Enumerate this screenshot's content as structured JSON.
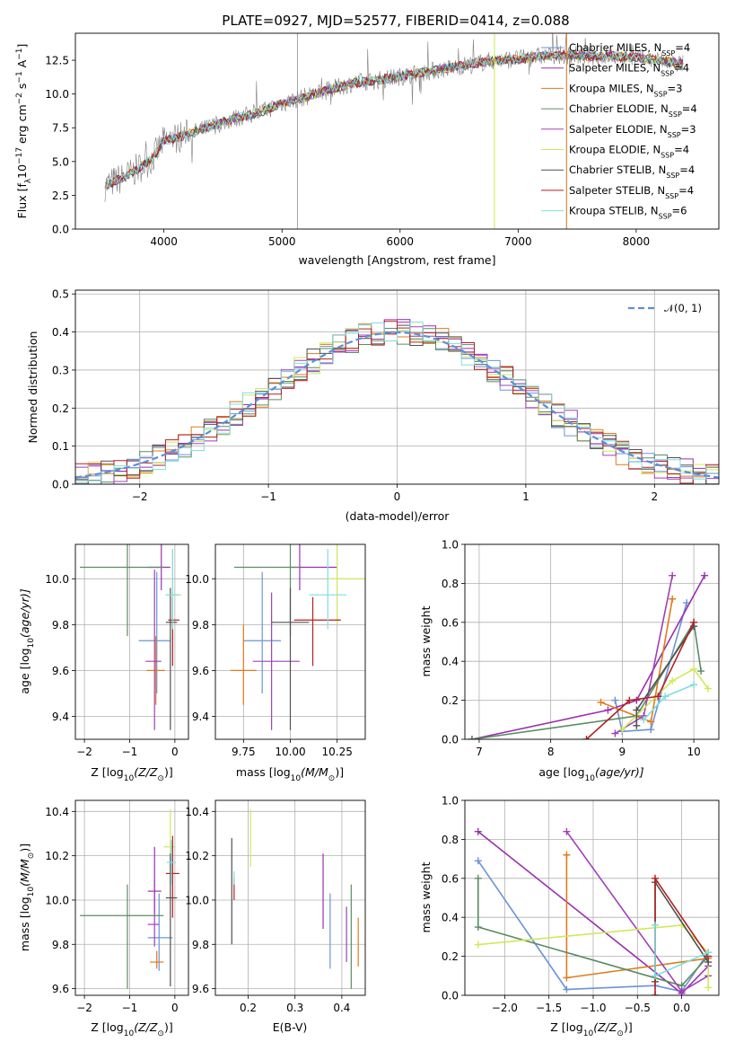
{
  "figure": {
    "title": "PLATE=0927, MJD=52577, FIBERID=0414, z=0.088"
  },
  "models": [
    {
      "name": "Chabrier MILES, N",
      "nssp": "4",
      "color": "#6b93d6"
    },
    {
      "name": "Salpeter MILES, N",
      "nssp": "4",
      "color": "#9a2fae"
    },
    {
      "name": "Kroupa MILES, N",
      "nssp": "3",
      "color": "#e07b1c"
    },
    {
      "name": "Chabrier ELODIE, N",
      "nssp": "4",
      "color": "#5b8c63"
    },
    {
      "name": "Salpeter ELODIE, N",
      "nssp": "3",
      "color": "#a040b8"
    },
    {
      "name": "Kroupa ELODIE, N",
      "nssp": "4",
      "color": "#d2e85a"
    },
    {
      "name": "Chabrier STELIB, N",
      "nssp": "4",
      "color": "#505050"
    },
    {
      "name": "Salpeter STELIB, N",
      "nssp": "4",
      "color": "#b22222"
    },
    {
      "name": "Kroupa STELIB, N",
      "nssp": "6",
      "color": "#7fdde0"
    }
  ],
  "legend_sub": "SSP",
  "chart_data": [
    {
      "id": "spectrum",
      "type": "line",
      "xlabel": "wavelength [Angstrom, rest frame]",
      "ylabel": "Flux [f",
      "xlim": [
        3250,
        8700
      ],
      "ylim": [
        0,
        14.5
      ],
      "xticks": [
        4000,
        5000,
        6000,
        7000,
        8000
      ],
      "yticks": [
        0.0,
        2.5,
        5.0,
        7.5,
        10.0,
        12.5
      ],
      "x": [
        3500,
        3700,
        3900,
        4000,
        4200,
        4400,
        4600,
        4800,
        5000,
        5200,
        5400,
        5600,
        5800,
        6000,
        6200,
        6400,
        6600,
        6800,
        7000,
        7200,
        7400,
        7600,
        7800,
        8000,
        8200,
        8400
      ],
      "y": [
        3.2,
        4.0,
        5.2,
        6.5,
        7.0,
        7.6,
        8.2,
        8.6,
        9.3,
        9.8,
        10.3,
        10.8,
        11.0,
        11.3,
        11.6,
        11.9,
        12.2,
        12.5,
        12.6,
        12.8,
        12.9,
        12.8,
        12.8,
        12.7,
        12.5,
        12.2
      ]
    },
    {
      "id": "residuals",
      "type": "line",
      "xlabel": "(data-model)/error",
      "ylabel": "Normed distribution",
      "xlim": [
        -2.5,
        2.5
      ],
      "ylim": [
        0,
        0.51
      ],
      "xticks": [
        -2,
        -1,
        0,
        1,
        2
      ],
      "yticks": [
        0.0,
        0.1,
        0.2,
        0.3,
        0.4,
        0.5
      ],
      "legend": "𝒩(0, 1)"
    },
    {
      "id": "age-vs-Z",
      "type": "scatter",
      "xlabel": "Z [log",
      "ylabel": "age  [log",
      "xlim": [
        -2.2,
        0.3
      ],
      "ylim": [
        9.3,
        10.15
      ],
      "xticks": [
        -2,
        -1,
        0
      ],
      "yticks": [
        9.4,
        9.6,
        9.8,
        10.0
      ],
      "points": [
        {
          "x": -0.4,
          "y": 9.73,
          "dx": [
            0.4,
            0.3
          ],
          "dy": [
            0.23,
            0.3
          ]
        },
        {
          "x": -0.3,
          "y": 10.05,
          "dx": [
            0.3,
            0.2
          ],
          "dy": [
            0.1,
            0.1
          ]
        },
        {
          "x": -0.42,
          "y": 9.6,
          "dx": [
            0.2,
            0.2
          ],
          "dy": [
            0.15,
            0.15
          ]
        },
        {
          "x": -1.05,
          "y": 10.05,
          "dx": [
            1.05,
            0.8
          ],
          "dy": [
            0.3,
            0.1
          ]
        },
        {
          "x": -0.45,
          "y": 9.64,
          "dx": [
            0.2,
            0.15
          ],
          "dy": [
            0.3,
            0.4
          ]
        },
        {
          "x": -0.05,
          "y": 9.93,
          "dx": [
            0.15,
            0.2
          ],
          "dy": [
            0.2,
            0.2
          ]
        },
        {
          "x": -0.1,
          "y": 9.81,
          "dx": [
            0.1,
            0.15
          ],
          "dy": [
            0.47,
            0.15
          ]
        },
        {
          "x": -0.05,
          "y": 9.82,
          "dx": [
            0.1,
            0.15
          ],
          "dy": [
            0.2,
            0.1
          ]
        },
        {
          "x": -0.05,
          "y": 9.93,
          "dx": [
            0.15,
            0.15
          ],
          "dy": [
            0.15,
            0.2
          ]
        }
      ]
    },
    {
      "id": "age-vs-mass",
      "type": "scatter",
      "xlabel": "mass [log",
      "ylabel": "",
      "xlim": [
        9.6,
        10.4
      ],
      "ylim": [
        9.3,
        10.15
      ],
      "xticks": [
        9.75,
        10.0,
        10.25
      ],
      "xticklabels": [
        "9.75",
        "10.00",
        "10.25"
      ],
      "yticks": [
        9.4,
        9.6,
        9.8,
        10.0
      ],
      "points": [
        {
          "x": 9.85,
          "y": 9.73,
          "dx": [
            0.1,
            0.1
          ],
          "dy": [
            0.23,
            0.3
          ]
        },
        {
          "x": 10.05,
          "y": 10.05,
          "dx": [
            0.05,
            0.2
          ],
          "dy": [
            0.1,
            0.1
          ]
        },
        {
          "x": 9.75,
          "y": 9.6,
          "dx": [
            0.07,
            0.07
          ],
          "dy": [
            0.15,
            0.2
          ]
        },
        {
          "x": 10.0,
          "y": 10.05,
          "dx": [
            0.3,
            0.05
          ],
          "dy": [
            0.3,
            0.1
          ]
        },
        {
          "x": 9.9,
          "y": 9.64,
          "dx": [
            0.1,
            0.15
          ],
          "dy": [
            0.3,
            0.3
          ]
        },
        {
          "x": 10.25,
          "y": 10.0,
          "dx": [
            0.05,
            0.15
          ],
          "dy": [
            0.2,
            0.2
          ]
        },
        {
          "x": 10.0,
          "y": 9.81,
          "dx": [
            0.1,
            0.1
          ],
          "dy": [
            0.47,
            0.15
          ]
        },
        {
          "x": 10.12,
          "y": 9.82,
          "dx": [
            0.1,
            0.15
          ],
          "dy": [
            0.2,
            0.1
          ]
        },
        {
          "x": 10.2,
          "y": 9.93,
          "dx": [
            0.1,
            0.1
          ],
          "dy": [
            0.15,
            0.2
          ]
        }
      ]
    },
    {
      "id": "weight-vs-age",
      "type": "line",
      "xlabel": "age  [log",
      "ylabel": "mass weight",
      "xlim": [
        6.8,
        10.35
      ],
      "ylim": [
        0,
        1.0
      ],
      "xticks": [
        7,
        8,
        9,
        10
      ],
      "yticks": [
        0.0,
        0.2,
        0.4,
        0.6,
        0.8,
        1.0
      ],
      "series": [
        {
          "x": [
            8.9,
            9.0,
            9.4,
            9.9
          ],
          "y": [
            0.2,
            0.04,
            0.05,
            0.7
          ]
        },
        {
          "x": [
            6.9,
            8.8,
            9.2,
            10.15
          ],
          "y": [
            0.0,
            0.15,
            0.2,
            0.84
          ]
        },
        {
          "x": [
            8.7,
            9.4,
            9.7
          ],
          "y": [
            0.19,
            0.09,
            0.72
          ]
        },
        {
          "x": [
            6.9,
            9.2,
            10.0,
            10.1
          ],
          "y": [
            0.0,
            0.12,
            0.6,
            0.35
          ]
        },
        {
          "x": [
            8.9,
            9.3,
            9.7
          ],
          "y": [
            0.03,
            0.12,
            0.84
          ]
        },
        {
          "x": [
            9.0,
            9.7,
            10.0,
            10.2
          ],
          "y": [
            0.05,
            0.3,
            0.36,
            0.26
          ]
        },
        {
          "x": [
            9.2,
            9.2,
            10.0
          ],
          "y": [
            0.07,
            0.15,
            0.58
          ]
        },
        {
          "x": [
            8.5,
            9.1,
            9.5,
            10.0
          ],
          "y": [
            0.0,
            0.2,
            0.22,
            0.6
          ]
        },
        {
          "x": [
            9.3,
            9.6,
            10.0
          ],
          "y": [
            0.1,
            0.22,
            0.28
          ]
        }
      ]
    },
    {
      "id": "mass-vs-Z",
      "type": "scatter",
      "xlabel": "Z [log",
      "ylabel": "mass [log",
      "xlim": [
        -2.2,
        0.3
      ],
      "ylim": [
        9.57,
        10.45
      ],
      "xticks": [
        -2,
        -1,
        0
      ],
      "yticks": [
        9.6,
        9.8,
        10.0,
        10.2,
        10.4
      ],
      "points": [
        {
          "x": -0.35,
          "y": 9.83,
          "dx": [
            0.25,
            0.3
          ],
          "dy": [
            0.15,
            0.2
          ]
        },
        {
          "x": -0.45,
          "y": 10.04,
          "dx": [
            0.15,
            0.15
          ],
          "dy": [
            0.1,
            0.2
          ]
        },
        {
          "x": -0.4,
          "y": 9.72,
          "dx": [
            0.15,
            0.15
          ],
          "dy": [
            0.03,
            0.05
          ]
        },
        {
          "x": -1.05,
          "y": 9.93,
          "dx": [
            1.05,
            0.8
          ],
          "dy": [
            0.33,
            0.14
          ]
        },
        {
          "x": -0.45,
          "y": 9.89,
          "dx": [
            0.15,
            0.1
          ],
          "dy": [
            0.1,
            0.2
          ]
        },
        {
          "x": -0.1,
          "y": 10.24,
          "dx": [
            0.15,
            0.1
          ],
          "dy": [
            0.1,
            0.17
          ]
        },
        {
          "x": -0.1,
          "y": 10.01,
          "dx": [
            0.1,
            0.15
          ],
          "dy": [
            0.4,
            0.2
          ]
        },
        {
          "x": -0.05,
          "y": 10.12,
          "dx": [
            0.15,
            0.15
          ],
          "dy": [
            0.2,
            0.17
          ]
        },
        {
          "x": -0.08,
          "y": 10.17,
          "dx": [
            0.1,
            0.1
          ],
          "dy": [
            0.1,
            0.1
          ]
        }
      ]
    },
    {
      "id": "mass-vs-EBV",
      "type": "scatter",
      "xlabel": "E(B-V)",
      "ylabel": "",
      "xlim": [
        0.13,
        0.45
      ],
      "ylim": [
        9.57,
        10.45
      ],
      "xticks": [
        0.2,
        0.3,
        0.4
      ],
      "yticks": [
        9.6,
        9.8,
        10.0,
        10.2,
        10.4
      ],
      "points": [
        {
          "x": 0.375,
          "y": 9.86,
          "dx": [
            0,
            0
          ],
          "dy": [
            0.17,
            0.17
          ]
        },
        {
          "x": 0.36,
          "y": 10.04,
          "dx": [
            0,
            0
          ],
          "dy": [
            0.17,
            0.17
          ]
        },
        {
          "x": 0.435,
          "y": 9.8,
          "dx": [
            0,
            0
          ],
          "dy": [
            0.1,
            0.12
          ]
        },
        {
          "x": 0.42,
          "y": 9.93,
          "dx": [
            0,
            0
          ],
          "dy": [
            0.33,
            0.14
          ]
        },
        {
          "x": 0.41,
          "y": 9.85,
          "dx": [
            0,
            0
          ],
          "dy": [
            0.13,
            0.12
          ]
        },
        {
          "x": 0.205,
          "y": 10.28,
          "dx": [
            0,
            0
          ],
          "dy": [
            0.13,
            0.13
          ]
        },
        {
          "x": 0.165,
          "y": 10.0,
          "dx": [
            0,
            0
          ],
          "dy": [
            0.2,
            0.28
          ]
        },
        {
          "x": 0.17,
          "y": 10.05,
          "dx": [
            0,
            0
          ],
          "dy": [
            0.05,
            0.05
          ]
        },
        {
          "x": 0.17,
          "y": 10.1,
          "dx": [
            0,
            0
          ],
          "dy": [
            0.03,
            0.03
          ]
        }
      ]
    },
    {
      "id": "weight-vs-Z",
      "type": "line",
      "xlabel": "Z [log",
      "ylabel": "mass weight",
      "xlim": [
        -2.45,
        0.42
      ],
      "ylim": [
        0,
        1.0
      ],
      "xticks": [
        -2.0,
        -1.5,
        -1.0,
        -0.5,
        0.0
      ],
      "xticklabels": [
        "−2.0",
        "−1.5",
        "−1.0",
        "−0.5",
        "0.0"
      ],
      "yticks": [
        0.0,
        0.2,
        0.4,
        0.6,
        0.8,
        1.0
      ],
      "series": [
        {
          "x": [
            -2.3,
            -1.3,
            -0.3,
            0.0,
            0.3
          ],
          "y": [
            0.69,
            0.03,
            0.05,
            0.02,
            0.22
          ]
        },
        {
          "x": [
            -2.3,
            0.0,
            0.3
          ],
          "y": [
            0.84,
            0.01,
            0.15
          ]
        },
        {
          "x": [
            -1.3,
            -1.3,
            0.3
          ],
          "y": [
            0.72,
            0.09,
            0.19
          ]
        },
        {
          "x": [
            -2.3,
            -2.3,
            0.0,
            0.3
          ],
          "y": [
            0.6,
            0.35,
            0.05,
            0.2
          ]
        },
        {
          "x": [
            -1.3,
            0.0,
            0.3
          ],
          "y": [
            0.84,
            0.02,
            0.1
          ]
        },
        {
          "x": [
            -2.3,
            0.0,
            0.3,
            0.3
          ],
          "y": [
            0.26,
            0.36,
            0.22,
            0.04
          ]
        },
        {
          "x": [
            -0.3,
            -0.3,
            0.3
          ],
          "y": [
            0.07,
            0.58,
            0.17
          ]
        },
        {
          "x": [
            -0.3,
            -0.3,
            0.3
          ],
          "y": [
            0.0,
            0.6,
            0.2
          ]
        },
        {
          "x": [
            -0.3,
            -0.3,
            0.3
          ],
          "y": [
            0.36,
            0.1,
            0.22
          ]
        }
      ]
    }
  ]
}
